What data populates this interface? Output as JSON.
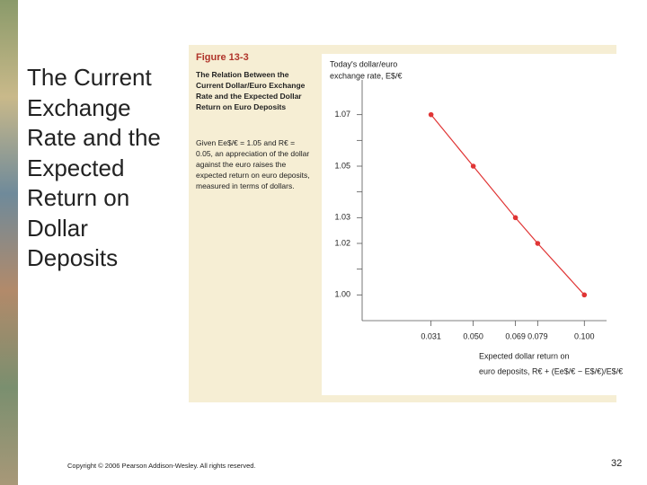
{
  "slide": {
    "title": "The Current Exchange Rate and the Expected Return on Dollar Deposits",
    "footer": "Copyright © 2006 Pearson Addison-Wesley. All rights reserved.",
    "page_number": "32"
  },
  "figure": {
    "label": "Figure 13-3",
    "caption_title": "The Relation Between the Current Dollar/Euro Exchange Rate and the Expected Dollar Return on Euro Deposits",
    "caption_body": "Given Ee$/€ = 1.05 and R€ = 0.05, an appreciation of the dollar against the euro raises the expected return on euro deposits, measured in terms of dollars."
  },
  "chart_data": {
    "type": "line",
    "ylabel": [
      "Today's dollar/euro",
      "exchange rate, E$/€"
    ],
    "xlabel": [
      "Expected dollar return on",
      "euro deposits, R€ + (Ee$/€ − E$/€)/E$/€"
    ],
    "x": [
      0.031,
      0.05,
      0.069,
      0.079,
      0.1
    ],
    "values": [
      1.07,
      1.05,
      1.03,
      1.02,
      1.0
    ],
    "color": "#e03535",
    "xlim": [
      0,
      0.11
    ],
    "ylim": [
      0.99,
      1.08
    ],
    "xticks": [
      0.031,
      {
        "value": 0.05,
        "label": "0.050"
      },
      0.069,
      0.079,
      {
        "value": 0.1,
        "label": "0.100"
      }
    ],
    "yticks": [
      {
        "value": 1.0,
        "label": "1.00"
      },
      1.02,
      1.03,
      1.05,
      1.07
    ],
    "yminorticks": [
      1.01,
      1.04,
      1.06
    ],
    "grid": false
  }
}
